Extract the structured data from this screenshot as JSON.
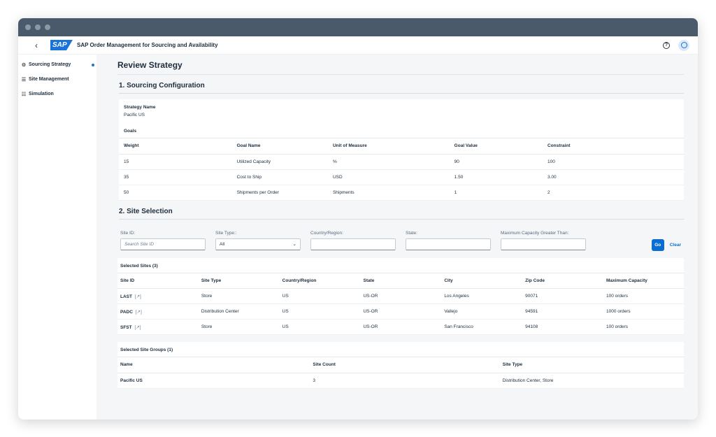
{
  "shell": {
    "back": "‹",
    "logo": "SAP",
    "app_title": "SAP Order Management for Sourcing and Availability",
    "help": "?"
  },
  "sidebar": {
    "items": [
      {
        "label": "Sourcing Strategy",
        "icon": "⚙",
        "active": true
      },
      {
        "label": "Site Management",
        "icon": "☰"
      },
      {
        "label": "Simulation",
        "icon": "☷"
      }
    ]
  },
  "page": {
    "title": "Review Strategy"
  },
  "sourcing_config": {
    "title": "1. Sourcing Configuration",
    "strategy_name_label": "Strategy Name",
    "strategy_name_value": "Pacific US",
    "goals_title": "Goals",
    "columns": [
      "Weight",
      "Goal Name",
      "Unit of Measure",
      "Goal Value",
      "Constraint"
    ],
    "rows": [
      [
        "15",
        "Utilized Capacity",
        "%",
        "90",
        "100"
      ],
      [
        "35",
        "Cost to Ship",
        "USD",
        "1.50",
        "3.00"
      ],
      [
        "50",
        "Shipments per Order",
        "Shipments",
        "1",
        "2"
      ]
    ]
  },
  "site_selection": {
    "title": "2. Site Selection",
    "filters": {
      "site_id_label": "Site ID:",
      "site_id_placeholder": "Search Site ID",
      "site_type_label": "Site Type::",
      "site_type_value": "All",
      "country_label": "Country/Region:",
      "state_label": "State:",
      "max_capacity_label": "Maximum Capacity Greater Than:",
      "go": "Go",
      "clear": "Clear"
    },
    "selected_sites_title": "Selected Sites (3)",
    "site_columns": [
      "Site ID",
      "Site Type",
      "Country/Region",
      "State",
      "City",
      "Zip Code",
      "Maximum Capacity"
    ],
    "sites": [
      {
        "id": "LAST",
        "type": "Store",
        "country": "US",
        "state": "US-OR",
        "city": "Los Angeles",
        "zip": "90071",
        "capacity": "100 orders"
      },
      {
        "id": "PADC",
        "type": "Distribution Center",
        "country": "US",
        "state": "US-OR",
        "city": "Vallejo",
        "zip": "94591",
        "capacity": "1000 orders"
      },
      {
        "id": "SFST",
        "type": "Store",
        "country": "US",
        "state": "US-OR",
        "city": "San Francisco",
        "zip": "94108",
        "capacity": "100 orders"
      }
    ],
    "link_glyph": "[↗]",
    "selected_groups_title": "Selected Site Groups (1)",
    "group_columns": [
      "Name",
      "Site Count",
      "Site Type"
    ],
    "groups": [
      {
        "name": "Pacific US",
        "count": "3",
        "type": "Distribution Center, Store"
      }
    ]
  }
}
